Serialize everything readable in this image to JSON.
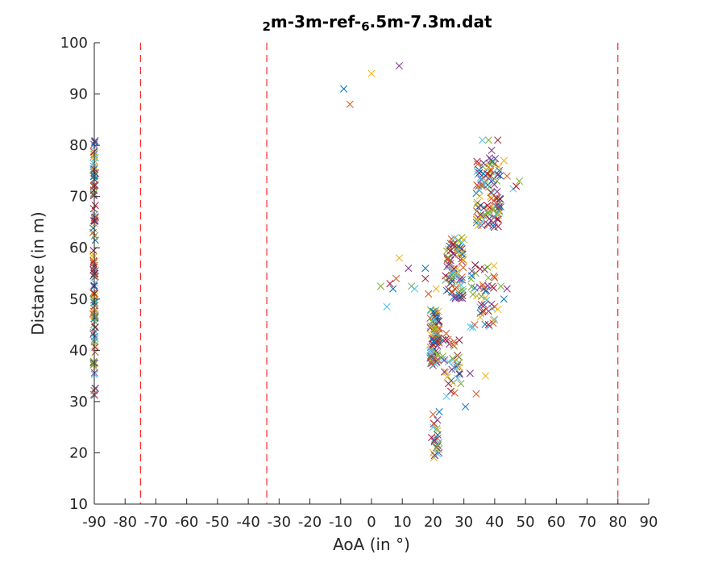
{
  "chart_data": {
    "type": "scatter",
    "title_parts": [
      {
        "text": "2",
        "sub": true
      },
      {
        "text": "m-3m-ref-",
        "sub": false
      },
      {
        "text": "6",
        "sub": true
      },
      {
        "text": ".5m-7.3m.dat",
        "sub": false
      }
    ],
    "xlabel": "AoA (in °)",
    "ylabel": "Distance (in m)",
    "xlim": [
      -90,
      90
    ],
    "ylim": [
      10,
      100
    ],
    "x_ticks": [
      -90,
      -80,
      -70,
      -60,
      -50,
      -40,
      -30,
      -20,
      -10,
      0,
      10,
      20,
      30,
      40,
      50,
      60,
      70,
      80,
      90
    ],
    "y_ticks": [
      10,
      20,
      30,
      40,
      50,
      60,
      70,
      80,
      90,
      100
    ],
    "marker": "x",
    "reference_lines": [
      -75,
      -34,
      80
    ],
    "reference_line_color": "#ff0000",
    "series_colors": [
      "#0072bd",
      "#d95319",
      "#edb120",
      "#7e2f8e",
      "#77ac30",
      "#4dbeee",
      "#a2142f"
    ],
    "clusters": [
      {
        "x": -90,
        "x_spread": 0.4,
        "y_min": 31,
        "y_max": 81,
        "count": 130
      },
      {
        "x": 20.5,
        "x_spread": 1.5,
        "y_min": 37,
        "y_max": 48,
        "count": 90
      },
      {
        "x": 21,
        "x_spread": 1.0,
        "y_min": 19,
        "y_max": 27,
        "count": 18
      },
      {
        "x": 27,
        "x_spread": 3.0,
        "y_min": 50,
        "y_max": 62,
        "count": 90
      },
      {
        "x": 38,
        "x_spread": 4.0,
        "y_min": 64,
        "y_max": 78,
        "count": 110
      },
      {
        "x": 36,
        "x_spread": 4.0,
        "y_min": 44,
        "y_max": 57,
        "count": 45
      },
      {
        "x": 26,
        "x_spread": 3.0,
        "y_min": 31,
        "y_max": 44,
        "count": 35
      }
    ],
    "points": [
      [
        -9,
        91
      ],
      [
        -7,
        88
      ],
      [
        0,
        94
      ],
      [
        9,
        95.5
      ],
      [
        3,
        52.5
      ],
      [
        5,
        48.5
      ],
      [
        6,
        53
      ],
      [
        7,
        52
      ],
      [
        8,
        54
      ],
      [
        9,
        58
      ],
      [
        12,
        56
      ],
      [
        13,
        52.5
      ],
      [
        14,
        52
      ],
      [
        17.5,
        54
      ],
      [
        17.5,
        56
      ],
      [
        18.5,
        51
      ],
      [
        21,
        52
      ],
      [
        44,
        52
      ],
      [
        42,
        52.5
      ],
      [
        40,
        46
      ],
      [
        38,
        45
      ],
      [
        43,
        50
      ],
      [
        40,
        48.5
      ],
      [
        41,
        48
      ],
      [
        39,
        49
      ],
      [
        48,
        73
      ],
      [
        46,
        71.5
      ],
      [
        47,
        72
      ],
      [
        42,
        68
      ],
      [
        44,
        74
      ],
      [
        43,
        77
      ],
      [
        39,
        79
      ],
      [
        38,
        81
      ],
      [
        36,
        81
      ],
      [
        41,
        81
      ],
      [
        30.5,
        29
      ],
      [
        34,
        31.5
      ],
      [
        37,
        35
      ],
      [
        32,
        35.5
      ],
      [
        29,
        33.5
      ],
      [
        28,
        34.5
      ],
      [
        25,
        33.5
      ],
      [
        22,
        28
      ],
      [
        20,
        27.5
      ],
      [
        20,
        20
      ],
      [
        20.5,
        19.5
      ],
      [
        21,
        21
      ],
      [
        20,
        25
      ],
      [
        19.5,
        23
      ],
      [
        21.5,
        23.5
      ]
    ]
  }
}
